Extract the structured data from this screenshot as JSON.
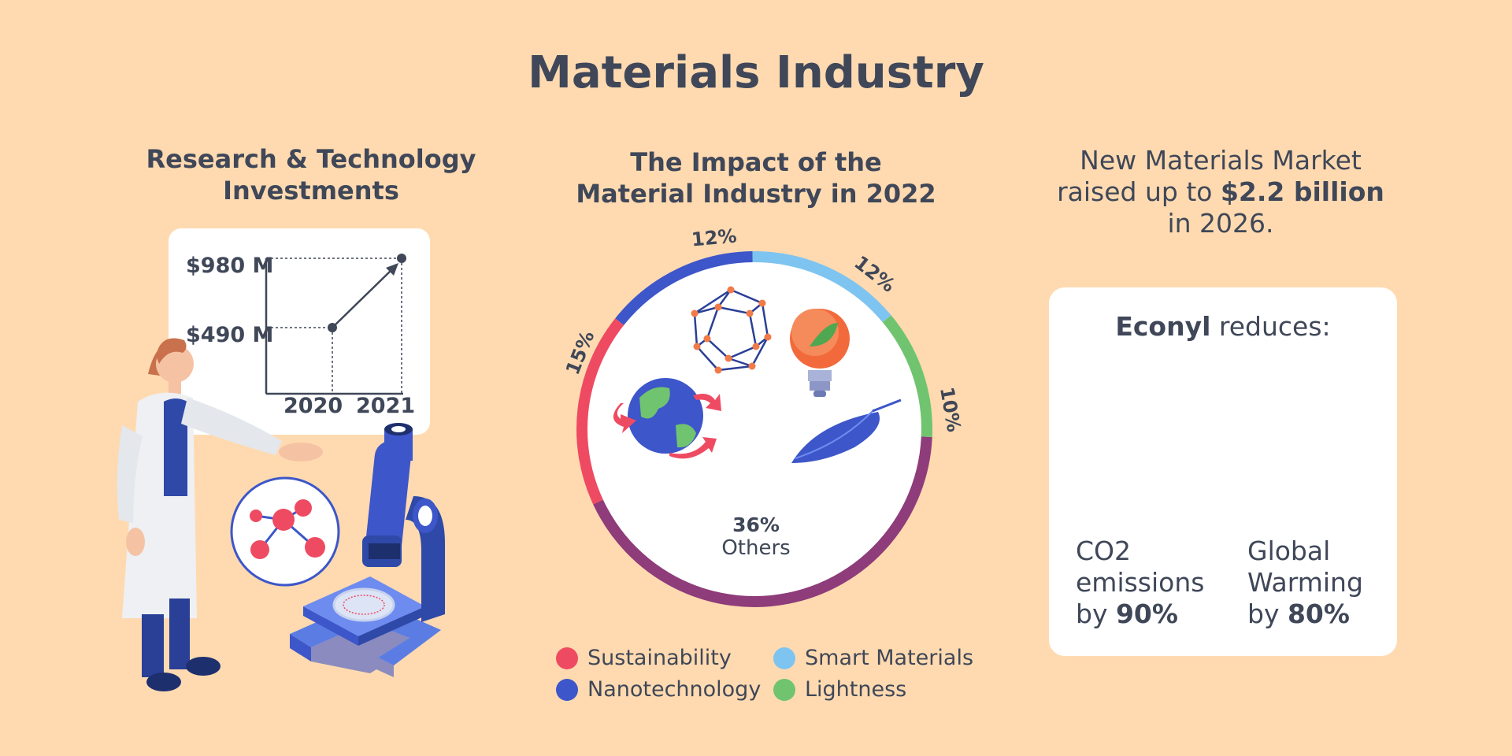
{
  "title": "Materials Industry",
  "investments": {
    "heading_line1": "Research & Technology",
    "heading_line2": "Investments",
    "y_labels": [
      "$980 M",
      "$490 M"
    ],
    "x_labels": [
      "2020",
      "2021"
    ]
  },
  "impact": {
    "heading_line1": "The Impact of the",
    "heading_line2": "Material Industry in 2022",
    "labels": {
      "sustainability": "15%",
      "nanotechnology": "12%",
      "smart_materials": "12%",
      "lightness": "10%",
      "others_pct": "36%",
      "others_name": "Others"
    },
    "legend": [
      "Sustainability",
      "Smart Materials",
      "Nanotechnology",
      "Lightness"
    ]
  },
  "market": {
    "line1": "New Materials Market",
    "line2_pre": "raised up to ",
    "line2_bold": "$2.2 billion",
    "line3": "in 2026."
  },
  "econyl": {
    "title_bold": "Econyl",
    "title_rest": " reduces:",
    "co2_line1": "CO2",
    "co2_line2": "emissions",
    "co2_prefix": "by ",
    "co2_value": "90%",
    "gw_line1": "Global",
    "gw_line2": "Warming",
    "gw_prefix": "by ",
    "gw_value": "80%"
  },
  "chart_data": {
    "type": "pie",
    "title": "The Impact of the Material Industry in 2022",
    "categories": [
      "Sustainability",
      "Nanotechnology",
      "Smart Materials",
      "Lightness",
      "Others"
    ],
    "values": [
      15,
      12,
      12,
      10,
      36
    ],
    "colors": [
      "#EE4B62",
      "#3D56C9",
      "#7EC4F0",
      "#70C470",
      "#8E3C7A"
    ],
    "legend": "bottom"
  },
  "colors": {
    "background": "#FFDAB0",
    "text": "#3F4758",
    "card": "#FFFFFF"
  }
}
